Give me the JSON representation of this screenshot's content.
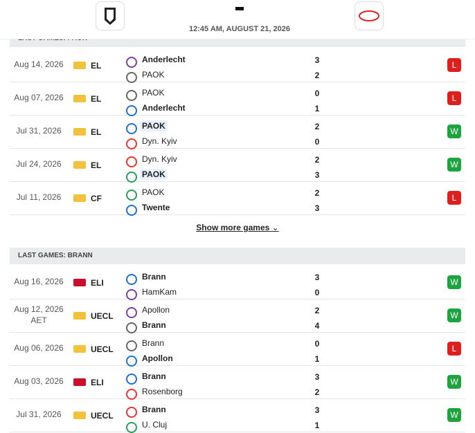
{
  "header": {
    "time": "12:45 AM, AUGUST 21, 2026"
  },
  "sections": [
    {
      "title": "LAST GAMES: PAOK",
      "matches": [
        {
          "date": "Aug 14, 2026",
          "comp": "EL",
          "home": "Anderlecht",
          "away": "PAOK",
          "home_score": 3,
          "away_score": 2,
          "result": "L"
        },
        {
          "date": "Aug 07, 2026",
          "comp": "EL",
          "home": "PAOK",
          "away": "Anderlecht",
          "home_score": 0,
          "away_score": 1,
          "result": "L"
        },
        {
          "date": "Jul 31, 2026",
          "comp": "EL",
          "home": "PAOK",
          "away": "Dyn. Kyiv",
          "home_score": 2,
          "away_score": 0,
          "result": "W"
        },
        {
          "date": "Jul 24, 2026",
          "comp": "EL",
          "home": "Dyn. Kyiv",
          "away": "PAOK",
          "home_score": 2,
          "away_score": 3,
          "result": "W"
        },
        {
          "date": "Jul 11, 2026",
          "comp": "CF",
          "home": "PAOK",
          "away": "Twente",
          "home_score": 2,
          "away_score": 3,
          "result": "L"
        }
      ]
    },
    {
      "title": "LAST GAMES: BRANN",
      "matches": [
        {
          "date": "Aug 16, 2026",
          "comp": "ELI",
          "home": "Brann",
          "away": "HamKam",
          "home_score": 3,
          "away_score": 0,
          "result": "W"
        },
        {
          "date": "Aug 12, 2026",
          "note": "AET",
          "comp": "UECL",
          "home": "Apollon",
          "away": "Brann",
          "home_score": 2,
          "away_score": 4,
          "result": "W"
        },
        {
          "date": "Aug 06, 2026",
          "comp": "UECL",
          "home": "Brann",
          "away": "Apollon",
          "home_score": 0,
          "away_score": 1,
          "result": "L"
        },
        {
          "date": "Aug 03, 2026",
          "comp": "ELI",
          "home": "Brann",
          "away": "Rosenborg",
          "home_score": 3,
          "away_score": 2,
          "result": "W"
        },
        {
          "date": "Jul 31, 2026",
          "comp": "UECL",
          "home": "Brann",
          "away": "U. Cluj",
          "home_score": 3,
          "away_score": 1,
          "result": "W"
        }
      ]
    }
  ],
  "show_more": "Show more games"
}
